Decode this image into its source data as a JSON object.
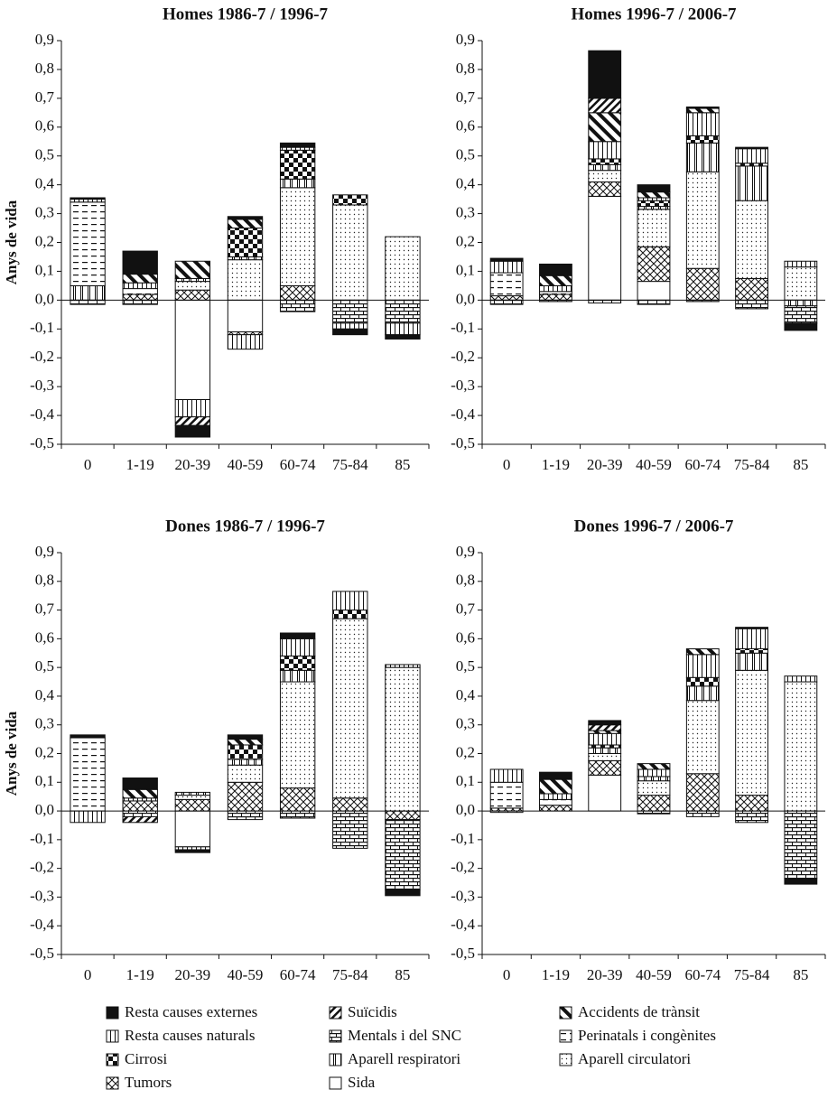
{
  "chart_data": [
    {
      "type": "bar",
      "stacked": true,
      "title": "Homes 1986-7 / 1996-7",
      "ylabel": "Anys de vida",
      "categories": [
        "0",
        "1-19",
        "20-39",
        "40-59",
        "60-74",
        "75-84",
        "85"
      ],
      "ylim": [
        -0.5,
        0.9
      ],
      "yticks": [
        {
          "value": -0.5,
          "label": "-0,5"
        },
        {
          "value": -0.4,
          "label": "-0,4"
        },
        {
          "value": -0.3,
          "label": "-0,3"
        },
        {
          "value": -0.2,
          "label": "-0,2"
        },
        {
          "value": -0.1,
          "label": "-0,1"
        },
        {
          "value": 0,
          "label": "0,0"
        },
        {
          "value": 0.1,
          "label": "0,1"
        },
        {
          "value": 0.2,
          "label": "0,2"
        },
        {
          "value": 0.3,
          "label": "0,3"
        },
        {
          "value": 0.4,
          "label": "0,4"
        },
        {
          "value": 0.5,
          "label": "0,5"
        },
        {
          "value": 0.6,
          "label": "0,6"
        },
        {
          "value": 0.7,
          "label": "0,7"
        },
        {
          "value": 0.8,
          "label": "0,8"
        },
        {
          "value": 0.9,
          "label": "0,9"
        }
      ],
      "series": [
        {
          "name": "Resta causes externes",
          "values": [
            0.005,
            0.08,
            -0.04,
            0.01,
            0.015,
            -0.02,
            -0.015
          ]
        },
        {
          "name": "Suïcidis",
          "values": [
            0,
            0,
            -0.03,
            0,
            0,
            0,
            0
          ]
        },
        {
          "name": "Accidents de trànsit",
          "values": [
            0,
            0.03,
            0.06,
            0.03,
            0,
            0,
            0
          ]
        },
        {
          "name": "Resta causes naturals",
          "values": [
            0.01,
            0.02,
            -0.06,
            -0.05,
            0.01,
            -0.02,
            -0.04
          ]
        },
        {
          "name": "Mentals i del SNC",
          "values": [
            -0.015,
            -0.015,
            0,
            0,
            -0.04,
            -0.08,
            -0.08
          ]
        },
        {
          "name": "Perinatals i congènites",
          "values": [
            0.29,
            0.02,
            0,
            0,
            0,
            0,
            0
          ]
        },
        {
          "name": "Cirrosi",
          "values": [
            0,
            0,
            0,
            0.1,
            0.1,
            0.035,
            0
          ]
        },
        {
          "name": "Aparell respiratori",
          "values": [
            0.05,
            0,
            0.01,
            0.01,
            0.03,
            0,
            0
          ]
        },
        {
          "name": "Aparell circulatori",
          "values": [
            0,
            0,
            0.03,
            0.14,
            0.34,
            0.33,
            0.22
          ]
        },
        {
          "name": "Tumors",
          "values": [
            0,
            0.02,
            0.035,
            -0.01,
            0.05,
            0,
            0
          ]
        },
        {
          "name": "Sida",
          "values": [
            0,
            0,
            -0.345,
            -0.11,
            0,
            0,
            0
          ]
        }
      ]
    },
    {
      "type": "bar",
      "stacked": true,
      "title": "Homes 1996-7 / 2006-7",
      "categories": [
        "0",
        "1-19",
        "20-39",
        "40-59",
        "60-74",
        "75-84",
        "85"
      ],
      "ylim": [
        -0.5,
        0.9
      ],
      "yticks": [
        {
          "value": -0.5,
          "label": "-0,5"
        },
        {
          "value": -0.4,
          "label": "-0,4"
        },
        {
          "value": -0.3,
          "label": "-0,3"
        },
        {
          "value": -0.2,
          "label": "-0,2"
        },
        {
          "value": -0.1,
          "label": "-0,1"
        },
        {
          "value": 0,
          "label": "0,0"
        },
        {
          "value": 0.1,
          "label": "0,1"
        },
        {
          "value": 0.2,
          "label": "0,2"
        },
        {
          "value": 0.3,
          "label": "0,3"
        },
        {
          "value": 0.4,
          "label": "0,4"
        },
        {
          "value": 0.5,
          "label": "0,5"
        },
        {
          "value": 0.6,
          "label": "0,6"
        },
        {
          "value": 0.7,
          "label": "0,7"
        },
        {
          "value": 0.8,
          "label": "0,8"
        },
        {
          "value": 0.9,
          "label": "0,9"
        }
      ],
      "series": [
        {
          "values": [
            0.01,
            0.04,
            0.165,
            0.025,
            0.005,
            0.005,
            -0.025
          ]
        },
        {
          "values": [
            0,
            0,
            0.05,
            0,
            0,
            0,
            0
          ]
        },
        {
          "values": [
            0,
            0.035,
            0.1,
            0.02,
            0.015,
            0,
            0
          ]
        },
        {
          "values": [
            0.04,
            0.02,
            0.06,
            0.01,
            0.08,
            0.05,
            0.02
          ]
        },
        {
          "values": [
            -0.015,
            -0.005,
            -0.01,
            -0.015,
            -0.005,
            -0.03,
            -0.06
          ]
        },
        {
          "values": [
            0.08,
            0.01,
            0,
            0,
            0,
            0,
            0
          ]
        },
        {
          "values": [
            0,
            0,
            0.02,
            0.02,
            0.025,
            0.01,
            0
          ]
        },
        {
          "values": [
            0,
            0,
            0.02,
            0.01,
            0.1,
            0.12,
            -0.02
          ]
        },
        {
          "values": [
            0,
            0,
            0.04,
            0.13,
            0.335,
            0.27,
            0.115
          ]
        },
        {
          "values": [
            0.015,
            0.02,
            0.05,
            0.12,
            0.11,
            0.075,
            0
          ]
        },
        {
          "values": [
            0,
            0,
            0.36,
            0.065,
            0,
            0,
            0
          ]
        }
      ]
    },
    {
      "type": "bar",
      "stacked": true,
      "title": "Dones 1986-7 / 1996-7",
      "ylabel": "Anys de vida",
      "categories": [
        "0",
        "1-19",
        "20-39",
        "40-59",
        "60-74",
        "75-84",
        "85"
      ],
      "ylim": [
        -0.5,
        0.9
      ],
      "yticks": [
        {
          "value": -0.5,
          "label": "-0,5"
        },
        {
          "value": -0.4,
          "label": "-0,4"
        },
        {
          "value": -0.3,
          "label": "-0,3"
        },
        {
          "value": -0.2,
          "label": "-0,2"
        },
        {
          "value": -0.1,
          "label": "-0,1"
        },
        {
          "value": 0,
          "label": "0,0"
        },
        {
          "value": 0.1,
          "label": "0,1"
        },
        {
          "value": 0.2,
          "label": "0,2"
        },
        {
          "value": 0.3,
          "label": "0,3"
        },
        {
          "value": 0.4,
          "label": "0,4"
        },
        {
          "value": 0.5,
          "label": "0,5"
        },
        {
          "value": 0.6,
          "label": "0,6"
        },
        {
          "value": 0.7,
          "label": "0,7"
        },
        {
          "value": 0.8,
          "label": "0,8"
        },
        {
          "value": 0.9,
          "label": "0,9"
        }
      ],
      "series": [
        {
          "values": [
            0.01,
            0.04,
            -0.01,
            0.015,
            0.02,
            0,
            -0.02
          ]
        },
        {
          "values": [
            0,
            -0.02,
            0,
            0,
            0,
            0,
            0
          ]
        },
        {
          "values": [
            0,
            0.03,
            0,
            0.02,
            0,
            0,
            0
          ]
        },
        {
          "values": [
            -0.04,
            0.01,
            -0.01,
            0,
            0.06,
            0.065,
            0.01
          ]
        },
        {
          "values": [
            0,
            -0.02,
            0,
            -0.03,
            -0.025,
            -0.13,
            -0.245
          ]
        },
        {
          "values": [
            0.255,
            0,
            0,
            0,
            0,
            0,
            0
          ]
        },
        {
          "values": [
            0,
            0,
            0,
            0.05,
            0.05,
            0.03,
            0
          ]
        },
        {
          "values": [
            0,
            0,
            0.01,
            0.02,
            0.04,
            0,
            0
          ]
        },
        {
          "values": [
            0,
            0,
            0.015,
            0.06,
            0.37,
            0.625,
            0.5
          ]
        },
        {
          "values": [
            0,
            0.035,
            0.04,
            0.1,
            0.08,
            0.045,
            -0.03
          ]
        },
        {
          "values": [
            0,
            0,
            -0.125,
            0,
            0,
            0,
            0
          ]
        }
      ]
    },
    {
      "type": "bar",
      "stacked": true,
      "title": "Dones 1996-7 / 2006-7",
      "categories": [
        "0",
        "1-19",
        "20-39",
        "40-59",
        "60-74",
        "75-84",
        "85"
      ],
      "ylim": [
        -0.5,
        0.9
      ],
      "yticks": [
        {
          "value": -0.5,
          "label": "-0,5"
        },
        {
          "value": -0.4,
          "label": "-0,4"
        },
        {
          "value": -0.3,
          "label": "-0,3"
        },
        {
          "value": -0.2,
          "label": "-0,2"
        },
        {
          "value": -0.1,
          "label": "-0,1"
        },
        {
          "value": 0,
          "label": "0,0"
        },
        {
          "value": 0.1,
          "label": "0,1"
        },
        {
          "value": 0.2,
          "label": "0,2"
        },
        {
          "value": 0.3,
          "label": "0,3"
        },
        {
          "value": 0.4,
          "label": "0,4"
        },
        {
          "value": 0.5,
          "label": "0,5"
        },
        {
          "value": 0.6,
          "label": "0,6"
        },
        {
          "value": 0.7,
          "label": "0,7"
        },
        {
          "value": 0.8,
          "label": "0,8"
        },
        {
          "value": 0.9,
          "label": "0,9"
        }
      ],
      "series": [
        {
          "values": [
            0,
            0.025,
            0.015,
            0,
            0,
            0.005,
            -0.02
          ]
        },
        {
          "values": [
            0,
            0,
            0.02,
            0,
            0,
            0,
            0
          ]
        },
        {
          "values": [
            0,
            0.05,
            0.01,
            0.02,
            0.02,
            0,
            0
          ]
        },
        {
          "values": [
            0.045,
            0.02,
            0.04,
            0.025,
            0.08,
            0.07,
            0.02
          ]
        },
        {
          "values": [
            -0.005,
            0,
            0,
            -0.01,
            -0.02,
            -0.04,
            -0.235
          ]
        },
        {
          "values": [
            0.09,
            0.02,
            0,
            0,
            0,
            0,
            0
          ]
        },
        {
          "values": [
            0,
            0,
            0.01,
            0,
            0.03,
            0.015,
            0
          ]
        },
        {
          "values": [
            0,
            0,
            0.02,
            0.015,
            0.05,
            0.06,
            0
          ]
        },
        {
          "values": [
            0,
            0,
            0.025,
            0.05,
            0.255,
            0.435,
            0.45
          ]
        },
        {
          "values": [
            0.01,
            0.02,
            0.05,
            0.055,
            0.13,
            0.055,
            0
          ]
        },
        {
          "values": [
            0,
            0,
            0.125,
            0,
            0,
            0,
            0
          ]
        }
      ]
    }
  ]
}
